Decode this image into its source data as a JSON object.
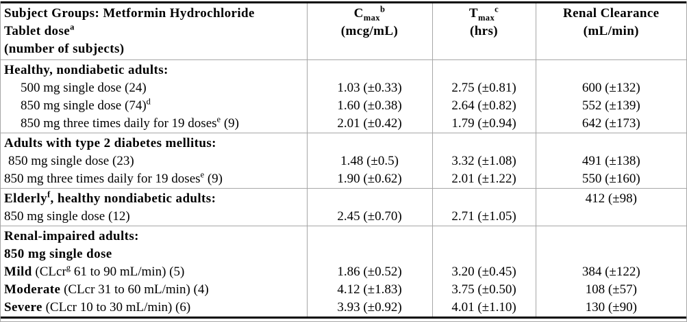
{
  "colors": {
    "background": "#ffffff",
    "text": "#000000",
    "grid_line": "#a6a6a6",
    "heavy_rule": "#000000"
  },
  "header": {
    "col1": {
      "line1": "Subject Groups: Metformin Hydrochloride",
      "line2": "Tablet dose",
      "line2_sup": "a",
      "line3": "(number of subjects)"
    },
    "cmax": {
      "base": "C",
      "sub": "max",
      "sup": "b",
      "unit": "(mcg/mL)"
    },
    "tmax": {
      "base": "T",
      "sub": "max",
      "sup": "c",
      "unit": "(hrs)"
    },
    "renal": {
      "line1": "Renal Clearance",
      "line2": "(mL/min)"
    }
  },
  "rows": [
    {
      "group_start": true,
      "indent": 0,
      "label": [
        {
          "t": "Healthy, nondiabetic adults:",
          "b": true
        }
      ],
      "cmax": "",
      "tmax": "",
      "renal": ""
    },
    {
      "group_start": false,
      "indent": 2,
      "label": [
        {
          "t": "500 mg single dose (24)"
        }
      ],
      "cmax": "1.03 (±0.33)",
      "tmax": "2.75 (±0.81)",
      "renal": "600 (±132)"
    },
    {
      "group_start": false,
      "indent": 2,
      "label": [
        {
          "t": "850 mg single dose (74)"
        },
        {
          "t": "d",
          "sup": true
        }
      ],
      "cmax": "1.60 (±0.38)",
      "tmax": "2.64 (±0.82)",
      "renal": "552 (±139)"
    },
    {
      "group_start": false,
      "indent": 2,
      "label": [
        {
          "t": "850 mg three times daily for 19 doses"
        },
        {
          "t": "e",
          "sup": true
        },
        {
          "t": " (9)"
        }
      ],
      "cmax": "2.01 (±0.42)",
      "tmax": "1.79 (±0.94)",
      "renal": "642 (±173)"
    },
    {
      "group_start": true,
      "indent": 0,
      "label": [
        {
          "t": "Adults with type 2 diabetes mellitus:",
          "b": true
        }
      ],
      "cmax": "",
      "tmax": "",
      "renal": ""
    },
    {
      "group_start": false,
      "indent": 1,
      "label": [
        {
          "t": "850 mg single dose (23)"
        }
      ],
      "cmax": "1.48 (±0.5)",
      "tmax": "3.32 (±1.08)",
      "renal": "491 (±138)"
    },
    {
      "group_start": false,
      "indent": 0,
      "label": [
        {
          "t": "850 mg three times daily for 19 doses"
        },
        {
          "t": "e",
          "sup": true
        },
        {
          "t": " (9)"
        }
      ],
      "cmax": "1.90 (±0.62)",
      "tmax": "2.01 (±1.22)",
      "renal": "550 (±160)"
    },
    {
      "group_start": true,
      "indent": 0,
      "label": [
        {
          "t": "Elderly",
          "b": true
        },
        {
          "t": "f",
          "b": true,
          "sup": true
        },
        {
          "t": ", healthy nondiabetic adults:",
          "b": true
        }
      ],
      "cmax": "",
      "tmax": "",
      "renal": "412 (±98)"
    },
    {
      "group_start": false,
      "indent": 0,
      "label": [
        {
          "t": "850 mg single dose (12)"
        }
      ],
      "cmax": "2.45 (±0.70)",
      "tmax": "2.71 (±1.05)",
      "renal": ""
    },
    {
      "group_start": true,
      "indent": 0,
      "label": [
        {
          "t": "Renal-impaired adults:",
          "b": true
        }
      ],
      "cmax": "",
      "tmax": "",
      "renal": ""
    },
    {
      "group_start": false,
      "indent": 0,
      "label": [
        {
          "t": "850 mg single dose",
          "b": true
        }
      ],
      "cmax": "",
      "tmax": "",
      "renal": ""
    },
    {
      "group_start": false,
      "indent": 0,
      "label": [
        {
          "t": "Mild",
          "b": true
        },
        {
          "t": " (CLcr"
        },
        {
          "t": "g",
          "sup": true
        },
        {
          "t": " 61 to 90 mL/min) (5)"
        }
      ],
      "cmax": "1.86 (±0.52)",
      "tmax": "3.20 (±0.45)",
      "renal": "384 (±122)"
    },
    {
      "group_start": false,
      "indent": 0,
      "label": [
        {
          "t": "Moderate",
          "b": true
        },
        {
          "t": " (CLcr 31 to 60 mL/min) (4)"
        }
      ],
      "cmax": "4.12 (±1.83)",
      "tmax": "3.75 (±0.50)",
      "renal": "108 (±57)"
    },
    {
      "group_start": false,
      "indent": 0,
      "label": [
        {
          "t": "Severe",
          "b": true
        },
        {
          "t": " (CLcr 10 to 30 mL/min) (6)"
        }
      ],
      "cmax": "3.93 (±0.92)",
      "tmax": "4.01 (±1.10)",
      "renal": "130 (±90)"
    }
  ]
}
